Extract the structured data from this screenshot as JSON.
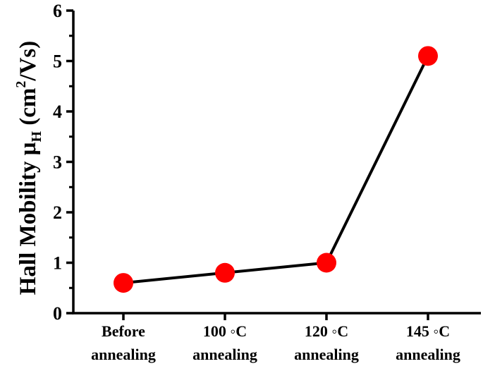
{
  "chart_data": {
    "type": "line",
    "categories": [
      [
        "Before",
        "annealing"
      ],
      [
        "100 ◦C",
        "annealing"
      ],
      [
        "120 ◦C",
        "annealing"
      ],
      [
        "145 ◦C",
        "annealing"
      ]
    ],
    "values": [
      0.6,
      0.8,
      1.0,
      5.1
    ],
    "ylabel": {
      "main": "Hall Mobility μ",
      "subscript": "H",
      "unit_open": " (cm",
      "superscript": "2",
      "unit_close": "/Vs)"
    },
    "yticks": [
      "0",
      "1",
      "2",
      "3",
      "4",
      "5",
      "6"
    ],
    "ylim": [
      0,
      6
    ],
    "grid": false,
    "legend": "none",
    "colors": {
      "marker": "#ff0000",
      "line": "#000000",
      "axis": "#000000"
    }
  }
}
